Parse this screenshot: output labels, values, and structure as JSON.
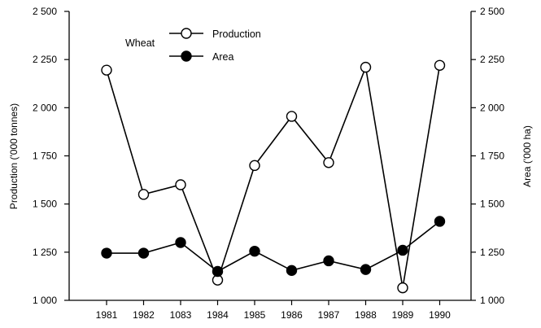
{
  "chart_data": {
    "type": "line",
    "categories": [
      "1981",
      "1982",
      "1083",
      "1984",
      "1985",
      "1986",
      "1987",
      "1988",
      "1989",
      "1990"
    ],
    "legend_title": "Wheat",
    "legend_placement": "top-left",
    "grid": false,
    "series": [
      {
        "name": "Production",
        "marker": "open-circle",
        "axis": "left",
        "values": [
          2195,
          1550,
          1600,
          1105,
          1700,
          1955,
          1715,
          2210,
          1065,
          2220
        ]
      },
      {
        "name": "Area",
        "marker": "filled-circle",
        "axis": "right",
        "values": [
          1245,
          1245,
          1300,
          1150,
          1255,
          1155,
          1205,
          1160,
          1260,
          1410
        ]
      }
    ],
    "y_left": {
      "label": "Production ('000 tonnes)",
      "ylim": [
        1000,
        2500
      ],
      "ticks": [
        1000,
        1250,
        1500,
        1750,
        2000,
        2250,
        2500
      ],
      "tick_labels": [
        "1 000",
        "1 250",
        "1 500",
        "1 750",
        "2 000",
        "2 250",
        "2 500"
      ]
    },
    "y_right": {
      "label": "Area ('000 ha)",
      "ylim": [
        1000,
        2500
      ],
      "ticks": [
        1000,
        1250,
        1500,
        1750,
        2000,
        2250,
        2500
      ],
      "tick_labels": [
        "1 000",
        "1 250",
        "1 500",
        "1 750",
        "2 000",
        "2 250",
        "2 500"
      ]
    }
  }
}
